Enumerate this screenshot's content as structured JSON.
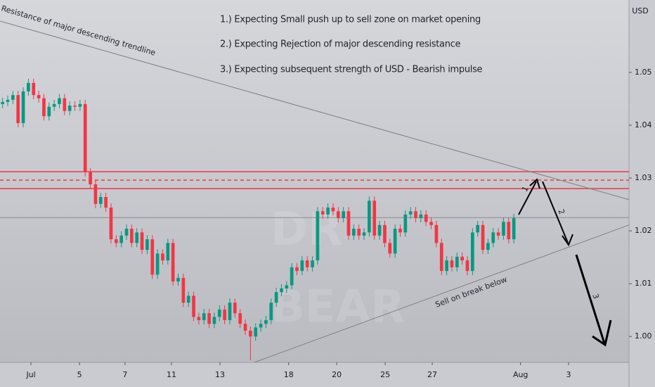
{
  "chart_data": {
    "type": "candlestick",
    "currency": "USD",
    "up_color": "#089981",
    "down_color": "#f23645",
    "xlim": [
      -0.5,
      121.3
    ],
    "ylim": [
      0.9951,
      1.0637
    ],
    "yticks": [
      {
        "value": 1.0,
        "label": "1.00"
      },
      {
        "value": 1.01,
        "label": "1.01"
      },
      {
        "value": 1.02,
        "label": "1.02"
      },
      {
        "value": 1.03,
        "label": "1.03"
      },
      {
        "value": 1.04,
        "label": "1.04"
      },
      {
        "value": 1.05,
        "label": "1.05"
      }
    ],
    "xticks": [
      {
        "value": 5.5,
        "label": "Jul"
      },
      {
        "value": 14.9,
        "label": "5"
      },
      {
        "value": 23.7,
        "label": "7"
      },
      {
        "value": 32.7,
        "label": "11"
      },
      {
        "value": 42.1,
        "label": "13"
      },
      {
        "value": 55.4,
        "label": "18"
      },
      {
        "value": 64.7,
        "label": "20"
      },
      {
        "value": 74.1,
        "label": "25"
      },
      {
        "value": 83.2,
        "label": "27"
      },
      {
        "value": 100.3,
        "label": "Aug"
      },
      {
        "value": 109.6,
        "label": "3"
      }
    ],
    "open": [
      1.044,
      1.0444,
      1.0448,
      1.0457,
      1.0404,
      1.0464,
      1.048,
      1.0457,
      1.0451,
      1.0417,
      1.0435,
      1.044,
      1.0451,
      1.0427,
      1.0437,
      1.0435,
      1.044,
      1.0311,
      1.0288,
      1.0251,
      1.0264,
      1.0244,
      1.0184,
      1.0177,
      1.0191,
      1.0204,
      1.0177,
      1.0197,
      1.0164,
      1.0184,
      1.0117,
      1.0157,
      1.0144,
      1.0177,
      1.0104,
      1.0111,
      1.0064,
      1.0077,
      1.0037,
      1.0031,
      1.0044,
      1.0024,
      1.0037,
      1.0051,
      1.0031,
      1.0064,
      1.0044,
      1.0024,
      1.0011,
      1.0,
      1.0017,
      1.0024,
      1.0031,
      1.0064,
      1.0084,
      1.0091,
      1.0097,
      1.0131,
      1.0124,
      1.0144,
      1.0131,
      1.0144,
      1.0237,
      1.0231,
      1.0244,
      1.0237,
      1.0224,
      1.0237,
      1.0191,
      1.0204,
      1.0191,
      1.0197,
      1.0257,
      1.0191,
      1.0211,
      1.0177,
      1.0157,
      1.0204,
      1.0197,
      1.0231,
      1.0237,
      1.0224,
      1.0231,
      1.0217,
      1.0211,
      1.0177,
      1.0124,
      1.0144,
      1.0131,
      1.0151,
      1.0144,
      1.0124,
      1.0197,
      1.0211,
      1.0164,
      1.0177,
      1.0197,
      1.0191,
      1.0217,
      1.0184
    ],
    "high": [
      1.0452,
      1.0456,
      1.0465,
      1.0465,
      1.0472,
      1.0488,
      1.0488,
      1.0465,
      1.0459,
      1.0443,
      1.0448,
      1.0459,
      1.0459,
      1.0445,
      1.0445,
      1.0448,
      1.0448,
      1.0319,
      1.0296,
      1.0272,
      1.0272,
      1.0252,
      1.0192,
      1.0199,
      1.0212,
      1.0212,
      1.0205,
      1.0205,
      1.0192,
      1.0192,
      1.0165,
      1.0165,
      1.0185,
      1.0185,
      1.0119,
      1.0119,
      1.0085,
      1.0085,
      1.0045,
      1.0052,
      1.0052,
      1.0045,
      1.0059,
      1.0059,
      1.0072,
      1.0072,
      1.0052,
      1.0032,
      1.0019,
      1.0025,
      1.0032,
      1.0039,
      1.0072,
      1.0092,
      1.0099,
      1.0105,
      1.0139,
      1.0139,
      1.0152,
      1.0152,
      1.0152,
      1.0245,
      1.0245,
      1.0252,
      1.0252,
      1.0245,
      1.0245,
      1.0245,
      1.0212,
      1.0212,
      1.0205,
      1.0265,
      1.0265,
      1.0219,
      1.0219,
      1.0185,
      1.0212,
      1.0212,
      1.0239,
      1.0245,
      1.0245,
      1.0239,
      1.0239,
      1.0225,
      1.0219,
      1.0185,
      1.0152,
      1.0152,
      1.0159,
      1.0159,
      1.0152,
      1.0205,
      1.0219,
      1.0219,
      1.0185,
      1.0205,
      1.0205,
      1.0225,
      1.0225,
      1.0232
    ],
    "low": [
      1.0432,
      1.0436,
      1.044,
      1.0396,
      1.0396,
      1.0456,
      1.0449,
      1.0443,
      1.0409,
      1.0409,
      1.0427,
      1.0432,
      1.0419,
      1.0419,
      1.0427,
      1.0427,
      1.0303,
      1.028,
      1.0243,
      1.0243,
      1.0236,
      1.0176,
      1.0169,
      1.0169,
      1.0183,
      1.0169,
      1.0169,
      1.0156,
      1.0156,
      1.0109,
      1.0109,
      1.0136,
      1.0136,
      1.0096,
      1.0096,
      1.0056,
      1.0056,
      1.0029,
      1.0023,
      1.0023,
      1.0016,
      1.0016,
      1.0029,
      1.0023,
      1.0023,
      1.0036,
      1.0016,
      1.0003,
      0.9955,
      0.9992,
      1.0009,
      1.0016,
      1.0023,
      1.0056,
      1.0076,
      1.0083,
      1.0089,
      1.0116,
      1.0116,
      1.0123,
      1.0123,
      1.0136,
      1.0223,
      1.0223,
      1.0229,
      1.0216,
      1.0216,
      1.0183,
      1.0183,
      1.0183,
      1.0183,
      1.0189,
      1.0183,
      1.0183,
      1.0169,
      1.0149,
      1.0149,
      1.0189,
      1.0189,
      1.0223,
      1.0216,
      1.0216,
      1.0209,
      1.0203,
      1.0169,
      1.0116,
      1.0116,
      1.0123,
      1.0123,
      1.0136,
      1.0116,
      1.0116,
      1.0189,
      1.0156,
      1.0156,
      1.0169,
      1.0183,
      1.0183,
      1.0176,
      1.0176
    ],
    "close": [
      1.0444,
      1.0448,
      1.0457,
      1.0404,
      1.0464,
      1.048,
      1.0457,
      1.0451,
      1.0417,
      1.0435,
      1.044,
      1.0451,
      1.0427,
      1.0437,
      1.0435,
      1.044,
      1.0311,
      1.0288,
      1.0251,
      1.0264,
      1.0244,
      1.0184,
      1.0177,
      1.0191,
      1.0204,
      1.0177,
      1.0197,
      1.0164,
      1.0184,
      1.0117,
      1.0157,
      1.0144,
      1.0177,
      1.0104,
      1.0111,
      1.0064,
      1.0077,
      1.0037,
      1.0031,
      1.0044,
      1.0024,
      1.0037,
      1.0051,
      1.0031,
      1.0064,
      1.0044,
      1.0024,
      1.0011,
      1.0,
      1.0017,
      1.0024,
      1.0031,
      1.0064,
      1.0084,
      1.0091,
      1.0097,
      1.0131,
      1.0124,
      1.0144,
      1.0131,
      1.0144,
      1.0237,
      1.0231,
      1.0244,
      1.0237,
      1.0224,
      1.0237,
      1.0191,
      1.0204,
      1.0191,
      1.0197,
      1.0257,
      1.0191,
      1.0211,
      1.0177,
      1.0157,
      1.0204,
      1.0197,
      1.0231,
      1.0237,
      1.0224,
      1.0231,
      1.0217,
      1.0211,
      1.0177,
      1.0124,
      1.0144,
      1.0131,
      1.0151,
      1.0144,
      1.0124,
      1.0197,
      1.0211,
      1.0164,
      1.0177,
      1.0197,
      1.0191,
      1.0217,
      1.0184,
      1.0224
    ],
    "price_line": 1.0225,
    "zone": {
      "top": 1.0312,
      "mid": 1.0296,
      "bottom": 1.028,
      "color": "#f23645"
    },
    "trendlines": [
      {
        "label": "Resistance of major descending trendline",
        "points": [
          [
            -0.5,
            1.0597
          ],
          [
            121.3,
            1.0259
          ]
        ]
      },
      {
        "label": "Sell on break below",
        "points": [
          [
            48.75,
            0.9951
          ],
          [
            121.3,
            1.0211
          ]
        ]
      }
    ],
    "notes": [
      "1.) Expecting Small push up to sell zone on market opening",
      "2.) Expecting Rejection of major descending resistance",
      "3.) Expecting subsequent strength of USD - Bearish impulse"
    ],
    "arrow_labels": [
      "1",
      "2",
      "3"
    ],
    "watermark": [
      "DR",
      "BEAR"
    ]
  }
}
